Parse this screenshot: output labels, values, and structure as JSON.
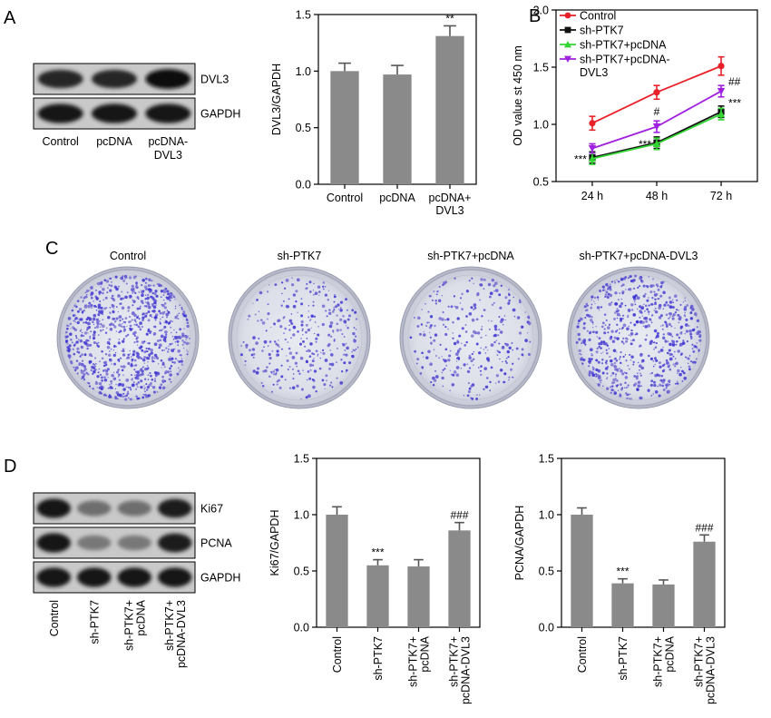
{
  "panels": {
    "a": {
      "letter": "A",
      "blot": {
        "bands": [
          {
            "label": "DVL3",
            "intensity": [
              0.85,
              0.85,
              1.0
            ]
          },
          {
            "label": "GAPDH",
            "intensity": [
              0.95,
              0.95,
              0.95
            ]
          }
        ],
        "lanes": [
          "Control",
          "pcDNA",
          "pcDNA-\nDVL3"
        ]
      }
    },
    "b": {
      "letter": "B"
    },
    "c": {
      "letter": "C",
      "dishes": [
        {
          "label": "Control",
          "density": 1.0
        },
        {
          "label": "sh-PTK7",
          "density": 0.35
        },
        {
          "label": "sh-PTK7+pcDNA",
          "density": 0.33
        },
        {
          "label": "sh-PTK7+pcDNA-DVL3",
          "density": 0.75
        }
      ]
    },
    "d": {
      "letter": "D",
      "blot": {
        "bands": [
          {
            "label": "Ki67",
            "intensity": [
              0.95,
              0.5,
              0.5,
              0.9
            ]
          },
          {
            "label": "PCNA",
            "intensity": [
              0.95,
              0.45,
              0.45,
              0.9
            ]
          },
          {
            "label": "GAPDH",
            "intensity": [
              0.95,
              0.95,
              0.95,
              0.95
            ]
          }
        ],
        "lanes": [
          "Control",
          "sh-PTK7",
          "sh-PTK7+\npcDNA",
          "sh-PTK7+\npcDNA-DVL3"
        ]
      }
    }
  },
  "chart_data": [
    {
      "id": "a-bar",
      "type": "bar",
      "categories": [
        "Control",
        "pcDNA",
        "pcDNA+\nDVL3"
      ],
      "values": [
        1.0,
        0.97,
        1.31
      ],
      "errors": [
        0.07,
        0.08,
        0.09
      ],
      "significance": [
        "",
        "",
        "**"
      ],
      "ylabel": "DVL3/GAPDH",
      "ylim": [
        0,
        1.5
      ],
      "yticks": [
        "0.0",
        "0.5",
        "1.0",
        "1.5"
      ]
    },
    {
      "id": "b-line",
      "type": "line",
      "x": [
        "24 h",
        "48 h",
        "72 h"
      ],
      "ylabel": "OD value st 450 nm",
      "ylim": [
        0.5,
        2.0
      ],
      "yticks": [
        "0.5",
        "1.0",
        "1.5",
        "2.0"
      ],
      "legend_position": "top-left",
      "series": [
        {
          "name": "Control",
          "values": [
            1.01,
            1.28,
            1.51
          ],
          "errors": [
            0.06,
            0.06,
            0.08
          ],
          "color": "#e8202a",
          "marker": "circle"
        },
        {
          "name": "sh-PTK7",
          "values": [
            0.71,
            0.84,
            1.11
          ],
          "errors": [
            0.05,
            0.05,
            0.05
          ],
          "color": "#111111",
          "marker": "square"
        },
        {
          "name": "sh-PTK7+pcDNA",
          "values": [
            0.7,
            0.83,
            1.09
          ],
          "errors": [
            0.05,
            0.05,
            0.05
          ],
          "color": "#32d532",
          "marker": "triangle-up"
        },
        {
          "name": "sh-PTK7+pcDNA-\nDVL3",
          "values": [
            0.79,
            0.98,
            1.29
          ],
          "errors": [
            0.04,
            0.05,
            0.05
          ],
          "color": "#a020e0",
          "marker": "triangle-down"
        }
      ],
      "annotations": [
        {
          "text": "***",
          "x": "24 h",
          "side": "left"
        },
        {
          "text": "***",
          "x": "48 h",
          "side": "left"
        },
        {
          "text": "#",
          "x": "48 h",
          "side": "above"
        },
        {
          "text": "##",
          "x": "72 h",
          "side": "right-high"
        },
        {
          "text": "***",
          "x": "72 h",
          "side": "right-low"
        }
      ]
    },
    {
      "id": "d-ki67",
      "type": "bar",
      "categories": [
        "Control",
        "sh-PTK7",
        "sh-PTK7+\npcDNA",
        "sh-PTK7+\npcDNA-DVL3"
      ],
      "values": [
        1.0,
        0.55,
        0.54,
        0.86
      ],
      "errors": [
        0.07,
        0.05,
        0.06,
        0.07
      ],
      "significance": [
        "",
        "***",
        "",
        "###"
      ],
      "ylabel": "Ki67/GAPDH",
      "ylim": [
        0,
        1.5
      ],
      "yticks": [
        "0.0",
        "0.5",
        "1.0",
        "1.5"
      ]
    },
    {
      "id": "d-pcna",
      "type": "bar",
      "categories": [
        "Control",
        "sh-PTK7",
        "sh-PTK7+\npcDNA",
        "sh-PTK7+\npcDNA-DVL3"
      ],
      "values": [
        1.0,
        0.39,
        0.38,
        0.76
      ],
      "errors": [
        0.06,
        0.04,
        0.04,
        0.06
      ],
      "significance": [
        "",
        "***",
        "",
        "###"
      ],
      "ylabel": "PCNA/GAPDH",
      "ylim": [
        0,
        1.5
      ],
      "yticks": [
        "0.0",
        "0.5",
        "1.0",
        "1.5"
      ]
    }
  ]
}
